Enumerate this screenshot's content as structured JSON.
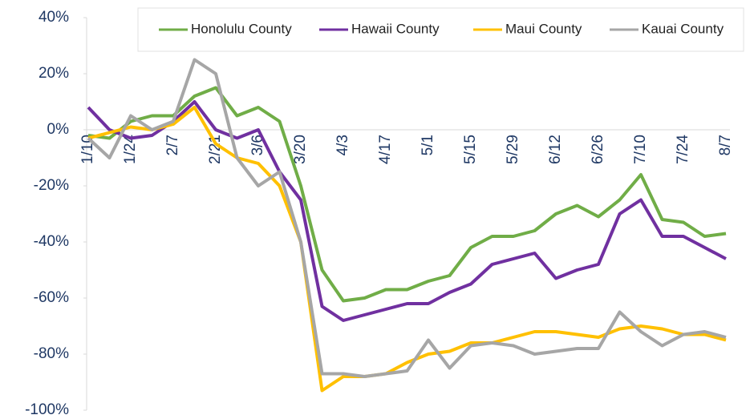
{
  "chart_data": {
    "type": "line",
    "categories": [
      "1/10",
      null,
      "1/24",
      null,
      "2/7",
      null,
      "2/21",
      null,
      "3/6",
      null,
      "3/20",
      null,
      "4/3",
      null,
      "4/17",
      null,
      "5/1",
      null,
      "5/15",
      null,
      "5/29",
      null,
      "6/12",
      null,
      "6/26",
      null,
      "7/10",
      null,
      "7/24",
      null,
      "8/7"
    ],
    "series": [
      {
        "name": "Honolulu County",
        "color": "#70ad47",
        "values": [
          -2,
          -3,
          3,
          5,
          5,
          12,
          15,
          5,
          8,
          3,
          -20,
          -50,
          -61,
          -60,
          -57,
          -57,
          -54,
          -52,
          -42,
          -38,
          -38,
          -36,
          -30,
          -27,
          -31,
          -25,
          -16,
          -32,
          -33,
          -38,
          -37
        ]
      },
      {
        "name": "Hawaii County",
        "color": "#7030a0",
        "values": [
          8,
          0,
          -3,
          -2,
          3,
          10,
          0,
          -3,
          0,
          -15,
          -25,
          -63,
          -68,
          -66,
          -64,
          -62,
          -62,
          -58,
          -55,
          -48,
          -46,
          -44,
          -53,
          -50,
          -48,
          -30,
          -25,
          -38,
          -38,
          -42,
          -46
        ]
      },
      {
        "name": "Maui County",
        "color": "#ffc000",
        "values": [
          -3,
          -1,
          1,
          0,
          2,
          8,
          -5,
          -10,
          -12,
          -20,
          -40,
          -93,
          -88,
          -88,
          -87,
          -83,
          -80,
          -79,
          -76,
          -76,
          -74,
          -72,
          -72,
          -73,
          -74,
          -71,
          -70,
          -71,
          -73,
          -73,
          -75
        ]
      },
      {
        "name": "Kauai County",
        "color": "#a6a6a6",
        "values": [
          -3,
          -10,
          5,
          0,
          3,
          25,
          20,
          -10,
          -20,
          -15,
          -40,
          -87,
          -87,
          -88,
          -87,
          -86,
          -75,
          -85,
          -77,
          -76,
          -77,
          -80,
          -79,
          -78,
          -78,
          -65,
          -72,
          -77,
          -73,
          -72,
          -74
        ]
      }
    ],
    "ylim": [
      -100,
      40
    ],
    "yticks": [
      {
        "value": -100,
        "label": "-100%"
      },
      {
        "value": -80,
        "label": "-80%"
      },
      {
        "value": -60,
        "label": "-60%"
      },
      {
        "value": -40,
        "label": "-40%"
      },
      {
        "value": -20,
        "label": "-20%"
      },
      {
        "value": 0,
        "label": "0%"
      },
      {
        "value": 20,
        "label": "20%"
      },
      {
        "value": 40,
        "label": "40%"
      }
    ],
    "legend": "top-right"
  }
}
